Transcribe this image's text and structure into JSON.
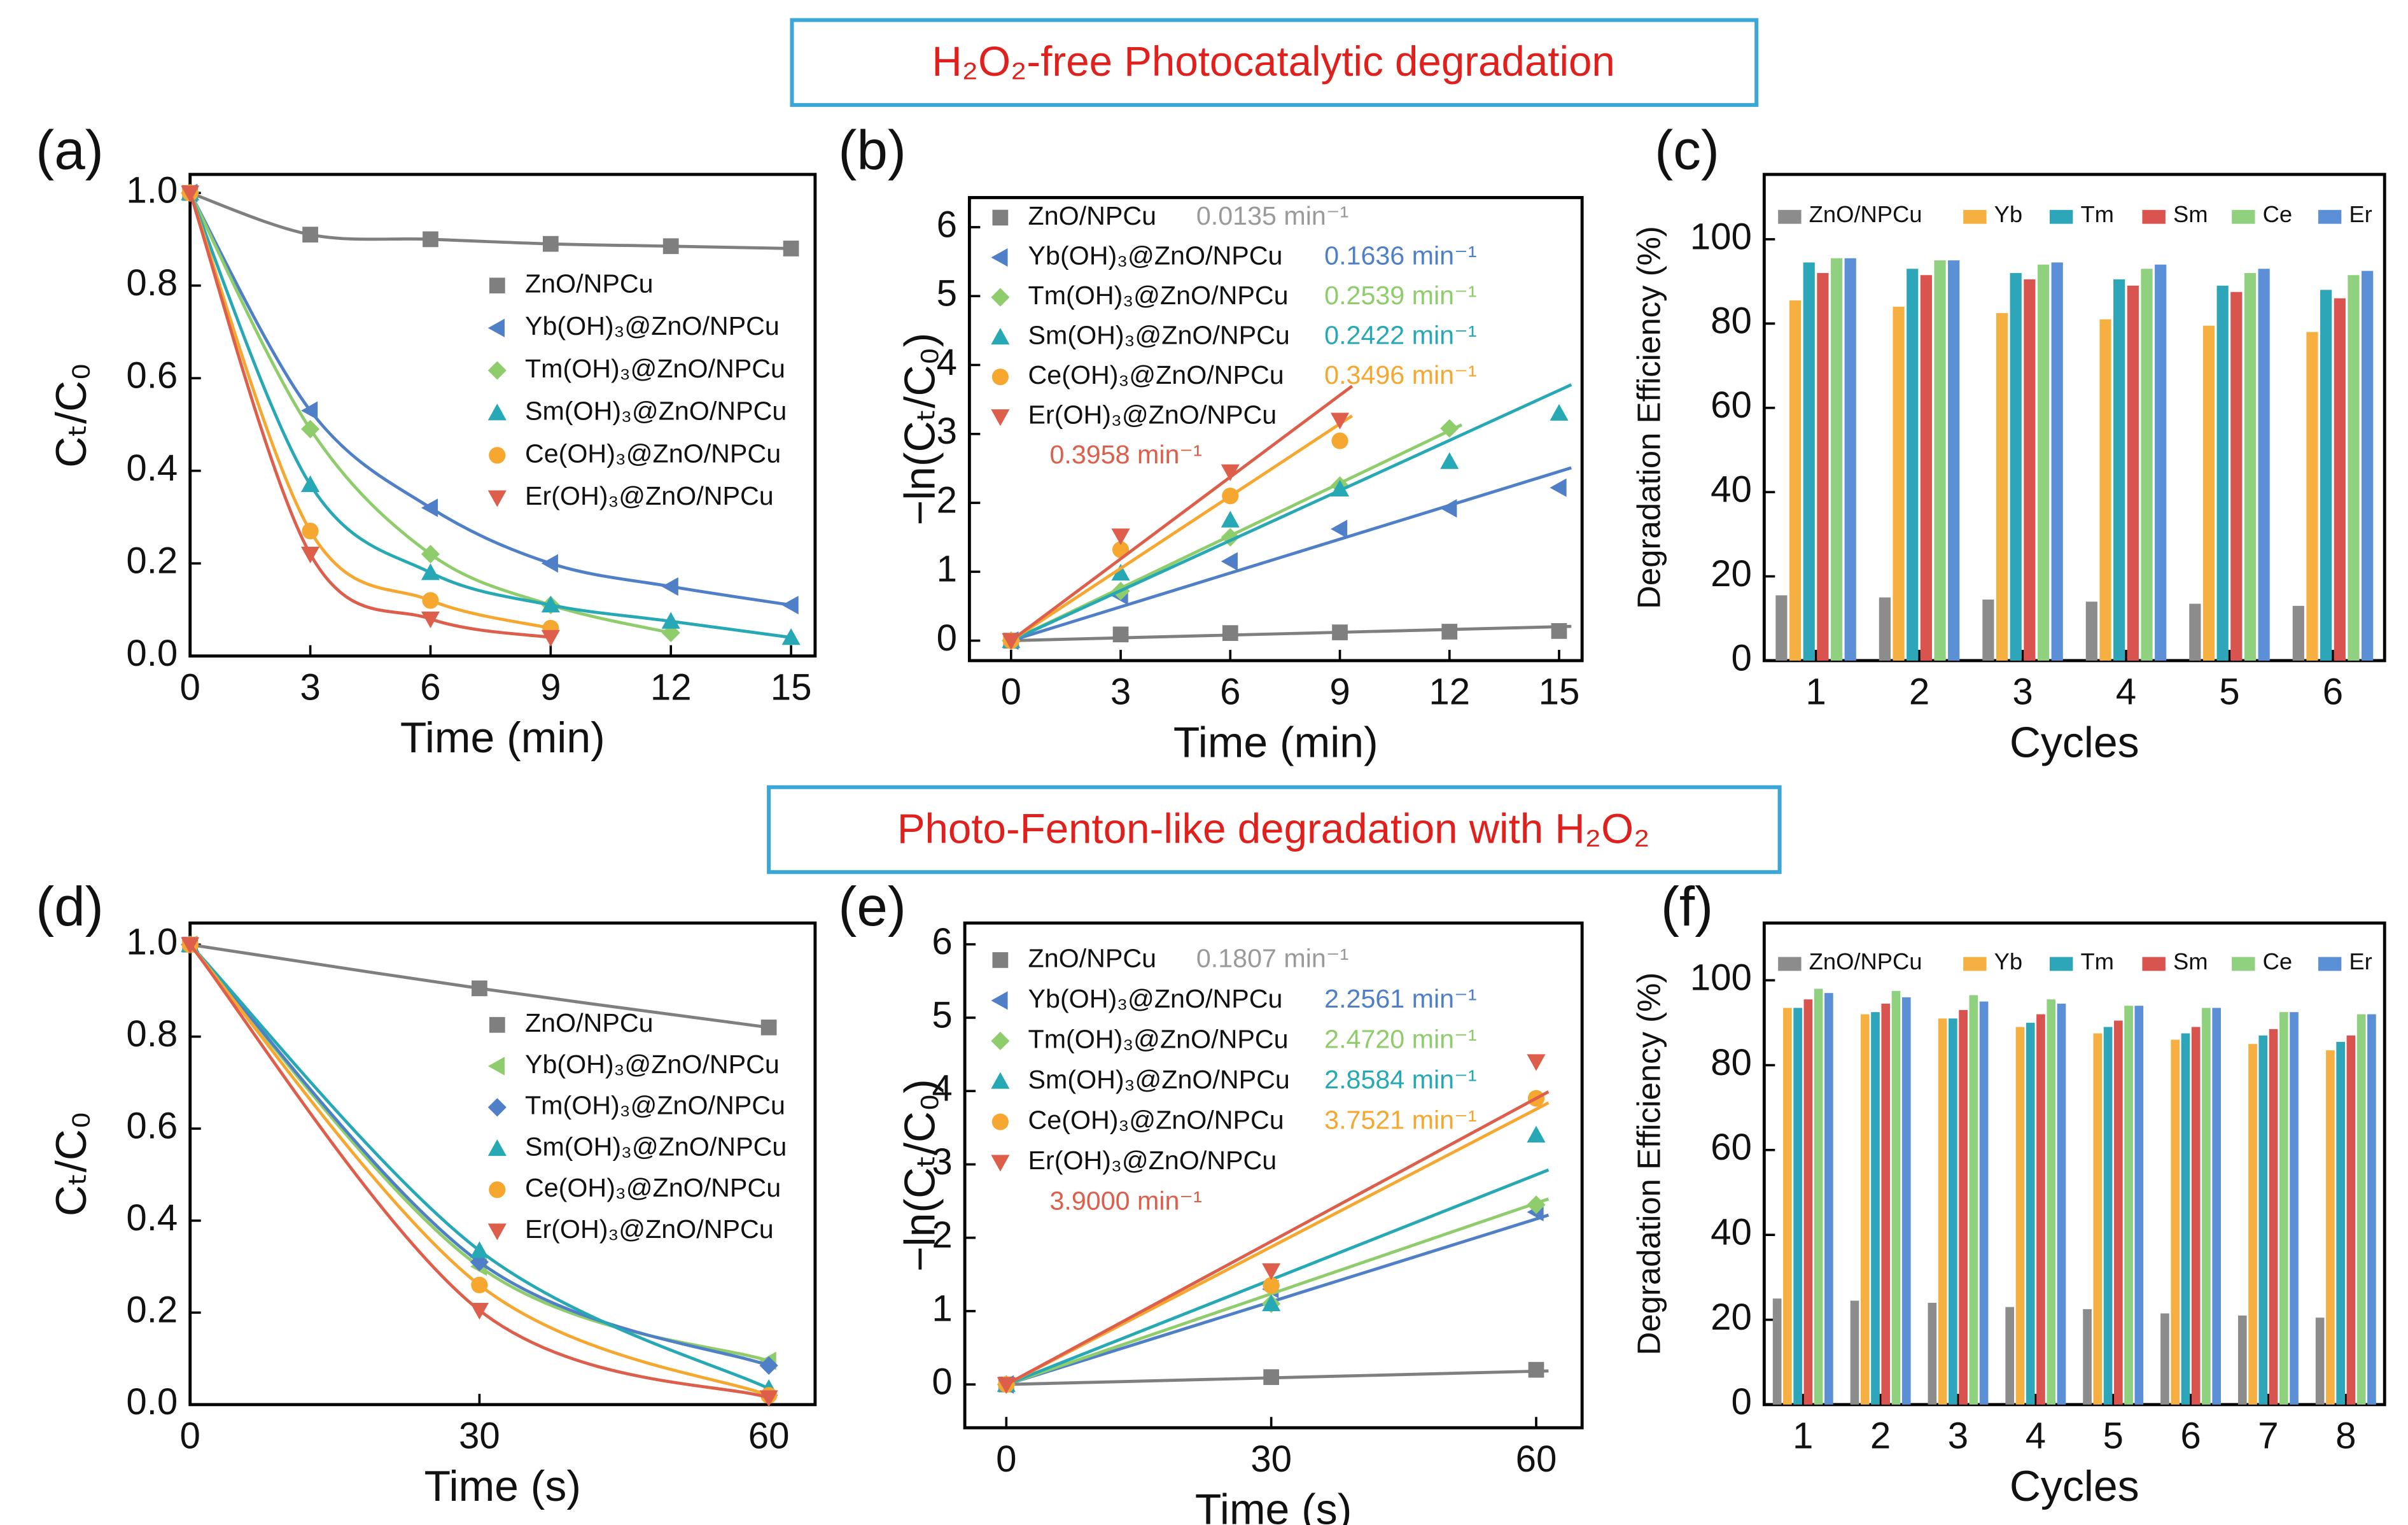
{
  "banners": [
    {
      "text": "H₂O₂-free Photocatalytic degradation"
    },
    {
      "text": "Photo-Fenton-like degradation with H₂O₂"
    }
  ],
  "chart_data": [
    {
      "type": "line",
      "panel_label": "(a)",
      "x_label": "Time (min)",
      "y_label": "Cₜ/C₀",
      "x": [
        0,
        3,
        6,
        9,
        12,
        15
      ],
      "xlim": [
        0,
        15.6
      ],
      "xticks": [
        0,
        3,
        6,
        9,
        12,
        15
      ],
      "ylim": [
        0,
        1.04
      ],
      "yticks": [
        {
          "value": 0,
          "label": "0.0"
        },
        {
          "value": 0.2,
          "label": "0.2"
        },
        {
          "value": 0.4,
          "label": "0.4"
        },
        {
          "value": 0.6,
          "label": "0.6"
        },
        {
          "value": 0.8,
          "label": "0.8"
        },
        {
          "value": 1,
          "label": "1.0"
        }
      ],
      "series": [
        {
          "name": "ZnO/NPCu",
          "color": "#7f7f7f",
          "marker": "square",
          "values": [
            1,
            0.91,
            0.9,
            0.89,
            0.885,
            0.88
          ]
        },
        {
          "name": "Yb(OH)₃@ZnO/NPCu",
          "color": "#4f7fc6",
          "marker": "left",
          "values": [
            1,
            0.53,
            0.32,
            0.2,
            0.15,
            0.11
          ]
        },
        {
          "name": "Tm(OH)₃@ZnO/NPCu",
          "color": "#8fcc6b",
          "marker": "diamond",
          "values": [
            1,
            0.49,
            0.22,
            0.11,
            0.05,
            null
          ]
        },
        {
          "name": "Sm(OH)₃@ZnO/NPCu",
          "color": "#27a9b5",
          "marker": "up",
          "values": [
            1,
            0.37,
            0.18,
            0.11,
            0.075,
            0.04
          ]
        },
        {
          "name": "Ce(OH)₃@ZnO/NPCu",
          "color": "#f5a730",
          "marker": "circle",
          "values": [
            1,
            0.27,
            0.12,
            0.06,
            null,
            null
          ]
        },
        {
          "name": "Er(OH)₃@ZnO/NPCu",
          "color": "#dd5f4b",
          "marker": "down",
          "values": [
            1,
            0.22,
            0.08,
            0.04,
            null,
            null
          ]
        }
      ]
    },
    {
      "type": "scatter",
      "panel_label": "(b)",
      "x_label": "Time (min)",
      "y_label": "−ln(Cₜ/C₀)",
      "x": [
        0,
        3,
        6,
        9,
        12,
        15
      ],
      "xlim": [
        -1.14,
        15.63
      ],
      "xticks": [
        0,
        3,
        6,
        9,
        12,
        15
      ],
      "ylim": [
        -0.29,
        6.43
      ],
      "yticks": [
        0,
        1,
        2,
        3,
        4,
        5,
        6
      ],
      "series": [
        {
          "name": "ZnO/NPCu",
          "color": "#7f7f7f",
          "rate_color": "#9a9a9a",
          "marker": "square",
          "values": [
            0,
            0.09,
            0.11,
            0.12,
            0.13,
            0.14
          ],
          "rate": 0.0135,
          "rate_label": "0.0135 min⁻¹"
        },
        {
          "name": "Yb(OH)₃@ZnO/NPCu",
          "color": "#4f7fc6",
          "marker": "left",
          "values": [
            0,
            0.65,
            1.15,
            1.62,
            1.92,
            2.22
          ],
          "rate": 0.1636,
          "rate_label": "0.1636 min⁻¹"
        },
        {
          "name": "Tm(OH)₃@ZnO/NPCu",
          "color": "#8fcc6b",
          "marker": "diamond",
          "values": [
            0,
            0.72,
            1.5,
            2.25,
            3.08,
            null
          ],
          "rate": 0.2539,
          "rate_label": "0.2539 min⁻¹"
        },
        {
          "name": "Sm(OH)₃@ZnO/NPCu",
          "color": "#27a9b5",
          "marker": "up",
          "values": [
            0,
            0.98,
            1.75,
            2.2,
            2.6,
            3.3
          ],
          "rate": 0.2422,
          "rate_label": "0.2422 min⁻¹"
        },
        {
          "name": "Ce(OH)₃@ZnO/NPCu",
          "color": "#f5a730",
          "marker": "circle",
          "values": [
            0,
            1.32,
            2.1,
            2.9,
            null,
            null
          ],
          "rate": 0.3496,
          "rate_label": "0.3496 min⁻¹"
        },
        {
          "name": "Er(OH)₃@ZnO/NPCu",
          "color": "#dd5f4b",
          "marker": "down",
          "values": [
            0,
            1.52,
            2.45,
            3.2,
            null,
            null
          ],
          "rate": 0.3958,
          "rate_label": "0.3958 min⁻¹"
        }
      ]
    },
    {
      "type": "bar",
      "panel_label": "(c)",
      "x_label": "Cycles",
      "y_label": "Degradation Efficiency (%)",
      "categories": [
        "1",
        "2",
        "3",
        "4",
        "5",
        "6"
      ],
      "ylim": [
        0,
        115.4
      ],
      "yticks": [
        0,
        20,
        40,
        60,
        80,
        100
      ],
      "series": [
        {
          "name": "ZnO/NPCu",
          "color": "#8c8c8c",
          "values": [
            15.5,
            15,
            14.5,
            14,
            13.5,
            13
          ]
        },
        {
          "name": "Yb",
          "color": "#f5b041",
          "values": [
            85.5,
            84,
            82.5,
            81,
            79.5,
            78
          ]
        },
        {
          "name": "Tm",
          "color": "#2ca6b8",
          "values": [
            94.5,
            93,
            92,
            90.5,
            89,
            88
          ]
        },
        {
          "name": "Sm",
          "color": "#d9534f",
          "values": [
            92,
            91.5,
            90.5,
            89,
            87.5,
            86
          ]
        },
        {
          "name": "Ce",
          "color": "#8fd17f",
          "values": [
            95.5,
            95,
            94,
            93,
            92,
            91.5
          ]
        },
        {
          "name": "Er",
          "color": "#5b8fd6",
          "values": [
            95.5,
            95,
            94.5,
            94,
            93,
            92.5
          ]
        }
      ]
    },
    {
      "type": "line",
      "panel_label": "(d)",
      "x_label": "Time (s)",
      "y_label": "Cₜ/C₀",
      "x": [
        0,
        30,
        60
      ],
      "xlim": [
        0,
        64.8
      ],
      "xticks": [
        0,
        30,
        60
      ],
      "ylim": [
        0,
        1.047
      ],
      "yticks": [
        {
          "value": 0,
          "label": "0.0"
        },
        {
          "value": 0.2,
          "label": "0.2"
        },
        {
          "value": 0.4,
          "label": "0.4"
        },
        {
          "value": 0.6,
          "label": "0.6"
        },
        {
          "value": 0.8,
          "label": "0.8"
        },
        {
          "value": 1,
          "label": "1.0"
        }
      ],
      "series": [
        {
          "name": "ZnO/NPCu",
          "color": "#7f7f7f",
          "marker": "square",
          "values": [
            1,
            0.905,
            0.82
          ]
        },
        {
          "name": "Yb(OH)₃@ZnO/NPCu",
          "color": "#8fcc6b",
          "marker": "left",
          "values": [
            1,
            0.3,
            0.095
          ]
        },
        {
          "name": "Tm(OH)₃@ZnO/NPCu",
          "color": "#4f7fc6",
          "marker": "diamond",
          "values": [
            1,
            0.31,
            0.085
          ]
        },
        {
          "name": "Sm(OH)₃@ZnO/NPCu",
          "color": "#27a9b5",
          "marker": "up",
          "values": [
            1,
            0.335,
            0.035
          ]
        },
        {
          "name": "Ce(OH)₃@ZnO/NPCu",
          "color": "#f5a730",
          "marker": "circle",
          "values": [
            1,
            0.26,
            0.02
          ]
        },
        {
          "name": "Er(OH)₃@ZnO/NPCu",
          "color": "#dd5f4b",
          "marker": "down",
          "values": [
            1,
            0.205,
            0.015
          ]
        }
      ]
    },
    {
      "type": "scatter",
      "panel_label": "(e)",
      "x_label": "Time (s)",
      "y_label": "−ln(Cₜ/C₀)",
      "x": [
        0,
        30,
        60
      ],
      "xlim": [
        -4.7,
        65.2
      ],
      "xticks": [
        0,
        30,
        60
      ],
      "ylim": [
        -0.59,
        6.29
      ],
      "yticks": [
        0,
        1,
        2,
        3,
        4,
        5,
        6
      ],
      "series": [
        {
          "name": "ZnO/NPCu",
          "color": "#7f7f7f",
          "rate_color": "#9a9a9a",
          "marker": "square",
          "values": [
            0,
            0.1,
            0.2
          ],
          "rate": 0.1807,
          "rate_label": "0.1807 min⁻¹"
        },
        {
          "name": "Yb(OH)₃@ZnO/NPCu",
          "color": "#4f7fc6",
          "marker": "left",
          "values": [
            0,
            1.3,
            2.35
          ],
          "rate": 2.2561,
          "rate_label": "2.2561 min⁻¹"
        },
        {
          "name": "Tm(OH)₃@ZnO/NPCu",
          "color": "#8fcc6b",
          "marker": "diamond",
          "values": [
            0,
            1.1,
            2.45
          ],
          "rate": 2.472,
          "rate_label": "2.4720 min⁻¹"
        },
        {
          "name": "Sm(OH)₃@ZnO/NPCu",
          "color": "#27a9b5",
          "marker": "up",
          "values": [
            0,
            1.1,
            3.4
          ],
          "rate": 2.8584,
          "rate_label": "2.8584 min⁻¹"
        },
        {
          "name": "Ce(OH)₃@ZnO/NPCu",
          "color": "#f5a730",
          "marker": "circle",
          "values": [
            0,
            1.35,
            3.9
          ],
          "rate": 3.7521,
          "rate_label": "3.7521 min⁻¹"
        },
        {
          "name": "Er(OH)₃@ZnO/NPCu",
          "color": "#dd5f4b",
          "marker": "down",
          "values": [
            0,
            1.55,
            4.4
          ],
          "rate": 3.9,
          "rate_label": "3.9000 min⁻¹"
        }
      ]
    },
    {
      "type": "bar",
      "panel_label": "(f)",
      "x_label": "Cycles",
      "y_label": "Degradation Efficiency (%)",
      "categories": [
        "1",
        "2",
        "3",
        "4",
        "5",
        "6",
        "7",
        "8"
      ],
      "ylim": [
        0,
        113.5
      ],
      "yticks": [
        0,
        20,
        40,
        60,
        80,
        100
      ],
      "series": [
        {
          "name": "ZnO/NPCu",
          "color": "#8c8c8c",
          "values": [
            25,
            24.5,
            24,
            23,
            22.5,
            21.5,
            21,
            20.5
          ]
        },
        {
          "name": "Yb",
          "color": "#f5b041",
          "values": [
            93.5,
            92,
            91,
            89,
            87.5,
            86,
            85,
            83.5
          ]
        },
        {
          "name": "Tm",
          "color": "#2ca6b8",
          "values": [
            93.5,
            92.5,
            91,
            90,
            89,
            87.5,
            87,
            85.5
          ]
        },
        {
          "name": "Sm",
          "color": "#d9534f",
          "values": [
            95.5,
            94.5,
            93,
            92,
            90.5,
            89,
            88.5,
            87
          ]
        },
        {
          "name": "Ce",
          "color": "#8fd17f",
          "values": [
            98,
            97.5,
            96.5,
            95.5,
            94,
            93.5,
            92.5,
            92
          ]
        },
        {
          "name": "Er",
          "color": "#5b8fd6",
          "values": [
            97,
            96,
            95,
            94.5,
            94,
            93.5,
            92.5,
            92
          ]
        }
      ]
    }
  ]
}
